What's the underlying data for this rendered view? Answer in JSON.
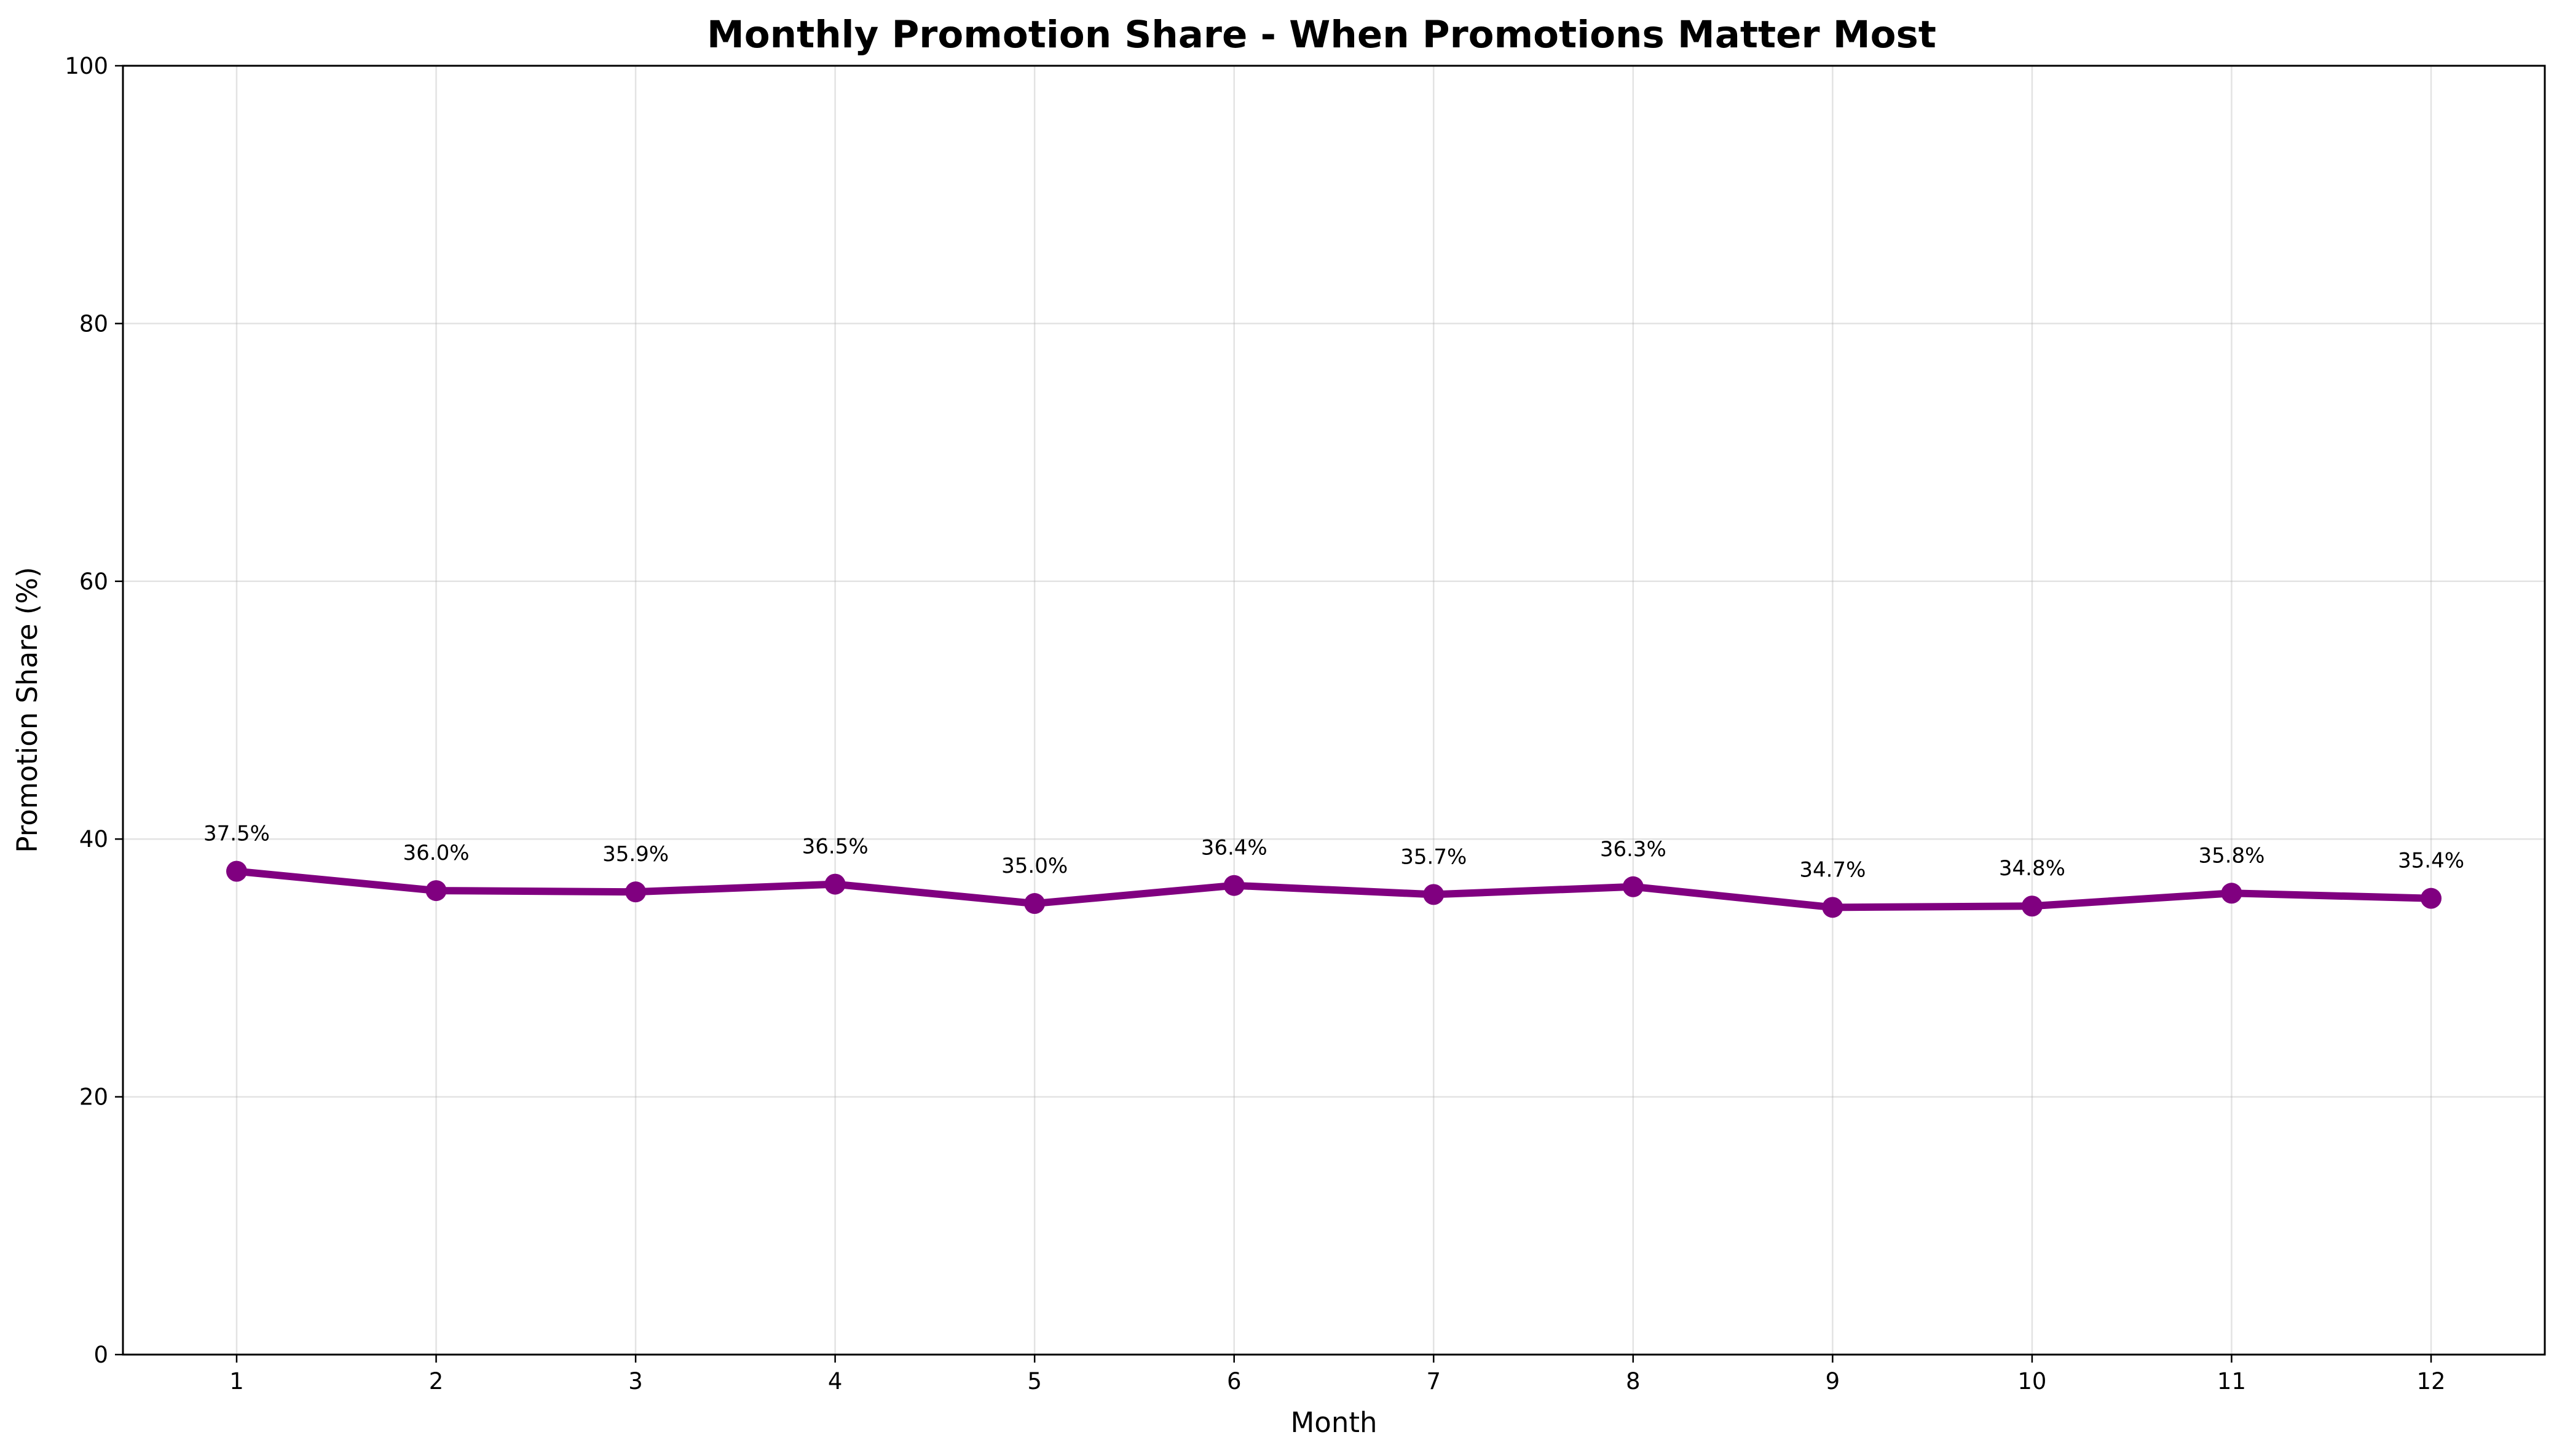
{
  "chart_data": {
    "type": "line",
    "title": "Monthly Promotion Share - When Promotions Matter Most",
    "xlabel": "Month",
    "ylabel": "Promotion Share (%)",
    "x": [
      1,
      2,
      3,
      4,
      5,
      6,
      7,
      8,
      9,
      10,
      11,
      12
    ],
    "x_tick_labels": [
      "1",
      "2",
      "3",
      "4",
      "5",
      "6",
      "7",
      "8",
      "9",
      "10",
      "11",
      "12"
    ],
    "y_tick_labels": [
      "0",
      "20",
      "40",
      "60",
      "80",
      "100"
    ],
    "y_ticks": [
      0,
      20,
      40,
      60,
      80,
      100
    ],
    "xlim": [
      0.43,
      12.57
    ],
    "ylim": [
      0,
      100
    ],
    "grid": true,
    "series": [
      {
        "values": [
          37.5,
          36.0,
          35.9,
          36.5,
          35.0,
          36.4,
          35.7,
          36.3,
          34.7,
          34.8,
          35.8,
          35.4
        ],
        "data_labels": [
          "37.5%",
          "36.0%",
          "35.9%",
          "36.5%",
          "35.0%",
          "36.4%",
          "35.7%",
          "36.3%",
          "34.7%",
          "34.8%",
          "35.8%",
          "35.4%"
        ],
        "color": "#800080",
        "marker": "circle"
      }
    ]
  }
}
